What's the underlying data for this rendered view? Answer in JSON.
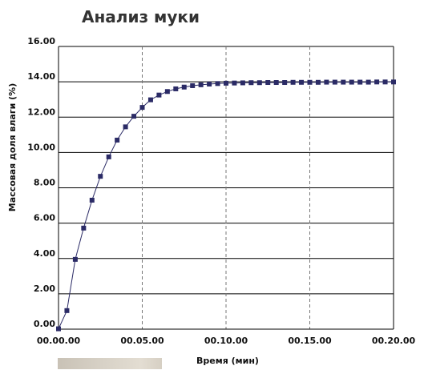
{
  "chart_data": {
    "type": "scatter",
    "title": "Анализ муки",
    "xlabel": "Время (мин)",
    "ylabel": "Массовая доля влаги (%)",
    "xlim": [
      0,
      20
    ],
    "ylim": [
      0,
      16
    ],
    "x_ticks": [
      "00.00.00",
      "00.05.00",
      "00.10.00",
      "00.15.00",
      "00.20.00"
    ],
    "y_ticks": [
      "0.00",
      "2.00",
      "4.00",
      "6.00",
      "8.00",
      "10.00",
      "12.00",
      "14.00",
      "16.00"
    ],
    "grid": {
      "horizontal": "solid",
      "vertical": "dashed"
    },
    "marker_color": "#2b2b66",
    "line_color": "#2b2b66",
    "series": [
      {
        "x": [
          0,
          0.5,
          1,
          1.5,
          2,
          2.5,
          3,
          3.5,
          4,
          4.5,
          5,
          5.5,
          6,
          6.5,
          7,
          7.5,
          8,
          8.5,
          9,
          9.5,
          10,
          10.5,
          11,
          11.5,
          12,
          12.5,
          13,
          13.5,
          14,
          14.5,
          15,
          15.5,
          16,
          16.5,
          17,
          17.5,
          18,
          18.5,
          19,
          19.5,
          20
        ],
        "y": [
          0.02,
          1.05,
          3.95,
          5.72,
          7.3,
          8.65,
          9.75,
          10.7,
          11.45,
          12.05,
          12.55,
          12.98,
          13.25,
          13.45,
          13.6,
          13.7,
          13.78,
          13.83,
          13.87,
          13.9,
          13.92,
          13.93,
          13.94,
          13.95,
          13.95,
          13.96,
          13.96,
          13.96,
          13.97,
          13.97,
          13.97,
          13.97,
          13.98,
          13.98,
          13.98,
          13.98,
          13.98,
          13.98,
          13.99,
          13.99,
          13.99
        ]
      }
    ]
  }
}
